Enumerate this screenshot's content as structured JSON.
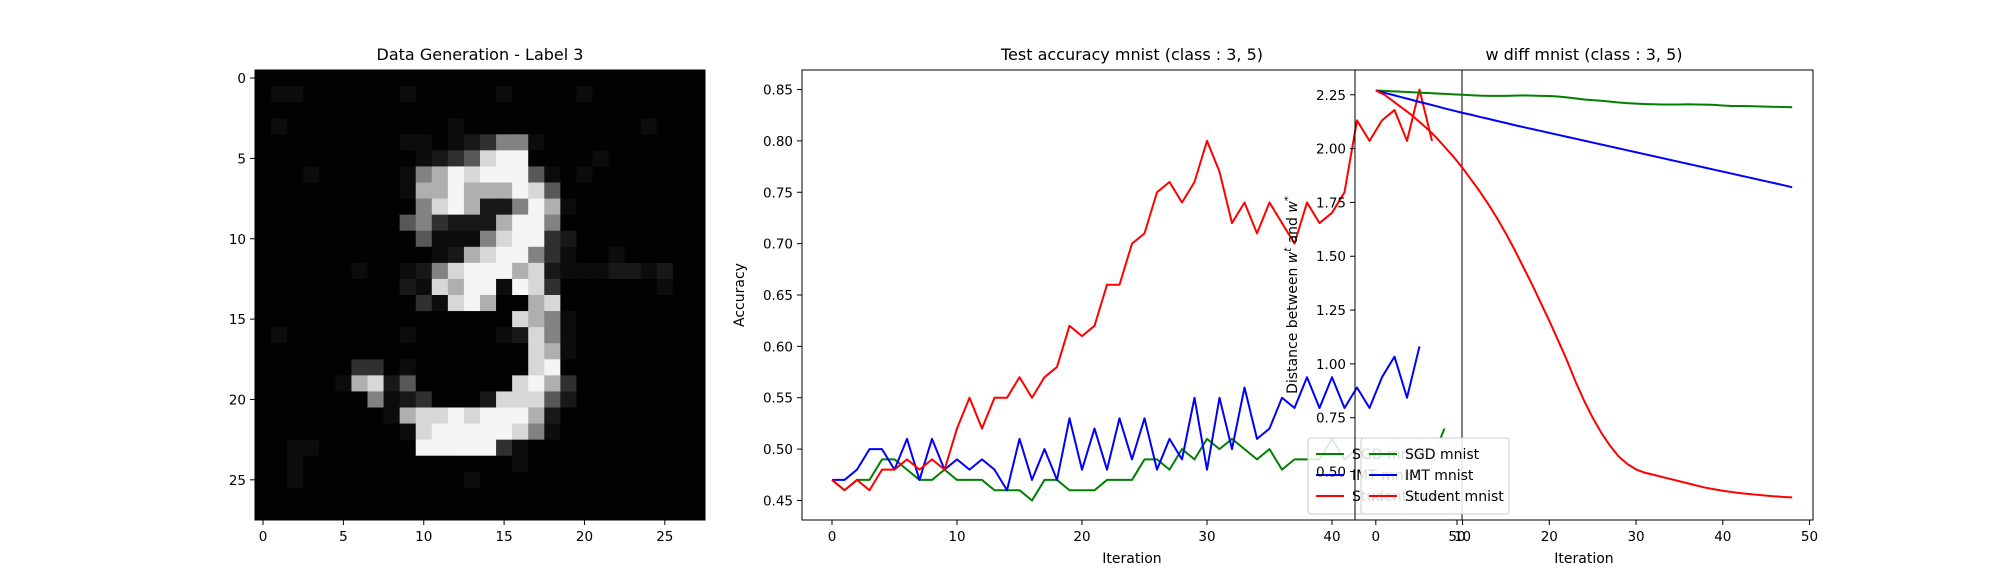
{
  "chart_data": [
    {
      "type": "heatmap",
      "title": "Data Generation - Label 3",
      "xlabel": "",
      "ylabel": "",
      "xticks": [
        0,
        5,
        10,
        15,
        20,
        25
      ],
      "yticks": [
        0,
        5,
        10,
        15,
        20,
        25
      ],
      "xlim": [
        -0.5,
        27.5
      ],
      "ylim": [
        27.5,
        -0.5
      ],
      "colormap": "gray",
      "grid": false,
      "pixels": [
        "0000000000000000000000000000",
        "0110000001000001000010000000",
        "0000000000000000000000000000",
        "0100000000001000000000001000",
        "0000000001101235510000000000",
        "0000000000123478800001000000",
        "0001000001568788841010000000",
        "0000000001668666874000000000",
        "0000000000578622586100000000",
        "0000000004532226885000000000",
        "0000000000411157883200000000",
        "0000000000012678853100100000",
        "0000001001257888672111221200",
        "0000000002176881873000000100",
        "0000000000317860067000000000",
        "0000000000000000765100000000",
        "0100000001000001275100000000",
        "0000000000000000076100000000",
        "0000003301000000078000000000",
        "0000016724000000786300000000",
        "0000000512300027774200000000",
        "0000000016778788862000000000",
        "0000000001788888751000000000",
        "0011000000888883100000000000",
        "0010000000000000100000000000",
        "0010000000000100000000000000",
        "0000000000000000000000000000",
        "0000000000000000000000000000"
      ]
    },
    {
      "type": "line",
      "title": "Test accuracy mnist (class : 3, 5)",
      "xlabel": "Iteration",
      "ylabel": "Accuracy",
      "xlim": [
        -2.4,
        50.4
      ],
      "ylim": [
        0.431,
        0.869
      ],
      "xticks": [
        0,
        10,
        20,
        30,
        40,
        50
      ],
      "yticks": [
        0.45,
        0.5,
        0.55,
        0.6,
        0.65,
        0.7,
        0.75,
        0.8,
        0.85
      ],
      "legend_position": "lower right",
      "grid": false,
      "series": [
        {
          "name": "SGD mnist",
          "color": "#008000",
          "values": [
            0.47,
            0.46,
            0.47,
            0.47,
            0.49,
            0.49,
            0.48,
            0.47,
            0.47,
            0.48,
            0.47,
            0.47,
            0.47,
            0.46,
            0.46,
            0.46,
            0.45,
            0.47,
            0.47,
            0.46,
            0.46,
            0.46,
            0.47,
            0.47,
            0.47,
            0.49,
            0.49,
            0.48,
            0.5,
            0.49,
            0.51,
            0.5,
            0.51,
            0.5,
            0.49,
            0.5,
            0.48,
            0.49,
            0.49,
            0.49,
            0.51,
            0.49,
            0.5,
            0.49,
            0.49,
            0.51,
            0.5,
            0.51,
            0.49,
            0.52
          ]
        },
        {
          "name": "IMT mnist",
          "color": "#0000ff",
          "values": [
            0.47,
            0.47,
            0.48,
            0.5,
            0.5,
            0.48,
            0.51,
            0.47,
            0.51,
            0.48,
            0.49,
            0.48,
            0.49,
            0.48,
            0.46,
            0.51,
            0.47,
            0.5,
            0.47,
            0.53,
            0.48,
            0.52,
            0.48,
            0.53,
            0.49,
            0.53,
            0.48,
            0.51,
            0.49,
            0.55,
            0.48,
            0.55,
            0.5,
            0.56,
            0.51,
            0.52,
            0.55,
            0.54,
            0.57,
            0.54,
            0.57,
            0.54,
            0.56,
            0.54,
            0.57,
            0.59,
            0.55,
            0.6
          ]
        },
        {
          "name": "Student mnist",
          "color": "#ff0000",
          "values": [
            0.47,
            0.46,
            0.47,
            0.46,
            0.48,
            0.48,
            0.49,
            0.48,
            0.49,
            0.48,
            0.52,
            0.55,
            0.52,
            0.55,
            0.55,
            0.57,
            0.55,
            0.57,
            0.58,
            0.62,
            0.61,
            0.62,
            0.66,
            0.66,
            0.7,
            0.71,
            0.75,
            0.76,
            0.74,
            0.76,
            0.8,
            0.77,
            0.72,
            0.74,
            0.71,
            0.74,
            0.72,
            0.7,
            0.74,
            0.72,
            0.73,
            0.75,
            0.82,
            0.8,
            0.82,
            0.83,
            0.8,
            0.85,
            0.8
          ]
        }
      ]
    },
    {
      "type": "line",
      "title": "w diff mnist (class : 3, 5)",
      "xlabel": "Iteration",
      "ylabel": "Distance between w^t and w^*",
      "xlim": [
        -2.4,
        50.4
      ],
      "ylim": [
        0.275,
        2.365
      ],
      "xticks": [
        0,
        10,
        20,
        30,
        40,
        50
      ],
      "yticks": [
        0.5,
        0.75,
        1.0,
        1.25,
        1.5,
        1.75,
        2.0,
        2.25
      ],
      "legend_position": "lower left",
      "grid": false,
      "series": [
        {
          "name": "SGD mnist",
          "color": "#008000",
          "values": [
            2.27,
            2.268,
            2.266,
            2.264,
            2.262,
            2.26,
            2.258,
            2.256,
            2.254,
            2.252,
            2.25,
            2.248,
            2.246,
            2.245,
            2.245,
            2.245,
            2.246,
            2.247,
            2.246,
            2.245,
            2.244,
            2.242,
            2.238,
            2.233,
            2.228,
            2.225,
            2.222,
            2.218,
            2.214,
            2.211,
            2.209,
            2.207,
            2.206,
            2.205,
            2.205,
            2.205,
            2.206,
            2.205,
            2.204,
            2.203,
            2.2,
            2.198,
            2.198,
            2.197,
            2.196,
            2.195,
            2.194,
            2.193,
            2.192
          ]
        },
        {
          "name": "IMT mnist",
          "color": "#0000ff",
          "values": [
            2.27,
            2.259,
            2.249,
            2.238,
            2.228,
            2.217,
            2.207,
            2.197,
            2.186,
            2.176,
            2.166,
            2.157,
            2.147,
            2.138,
            2.128,
            2.119,
            2.109,
            2.1,
            2.091,
            2.082,
            2.073,
            2.064,
            2.055,
            2.046,
            2.037,
            2.028,
            2.019,
            2.01,
            2.001,
            1.992,
            1.983,
            1.974,
            1.965,
            1.956,
            1.947,
            1.938,
            1.929,
            1.92,
            1.911,
            1.902,
            1.893,
            1.884,
            1.875,
            1.866,
            1.857,
            1.848,
            1.839,
            1.83,
            1.82
          ]
        },
        {
          "name": "Student mnist",
          "color": "#ff0000",
          "values": [
            2.27,
            2.25,
            2.22,
            2.19,
            2.16,
            2.125,
            2.09,
            2.05,
            2.005,
            1.96,
            1.91,
            1.855,
            1.8,
            1.74,
            1.675,
            1.605,
            1.53,
            1.45,
            1.37,
            1.285,
            1.2,
            1.11,
            1.02,
            0.92,
            0.83,
            0.75,
            0.68,
            0.62,
            0.57,
            0.535,
            0.51,
            0.495,
            0.485,
            0.475,
            0.465,
            0.455,
            0.445,
            0.435,
            0.425,
            0.418,
            0.411,
            0.405,
            0.4,
            0.396,
            0.392,
            0.388,
            0.385,
            0.382,
            0.38
          ]
        }
      ]
    }
  ]
}
